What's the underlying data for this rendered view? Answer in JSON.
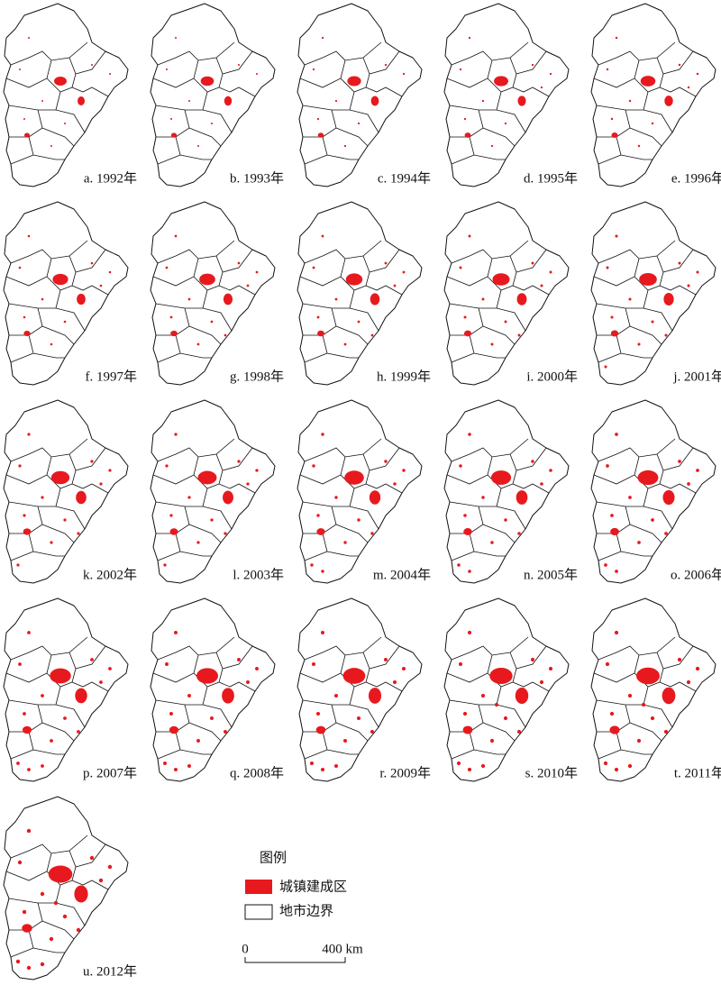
{
  "panels": [
    {
      "label": "a. 1992年"
    },
    {
      "label": "b. 1993年"
    },
    {
      "label": "c. 1994年"
    },
    {
      "label": "d. 1995年"
    },
    {
      "label": "e. 1996年"
    },
    {
      "label": "f. 1997年"
    },
    {
      "label": "g. 1998年"
    },
    {
      "label": "h. 1999年"
    },
    {
      "label": "i. 2000年"
    },
    {
      "label": "j. 2001年"
    },
    {
      "label": "k. 2002年"
    },
    {
      "label": "l. 2003年"
    },
    {
      "label": "m. 2004年"
    },
    {
      "label": "n. 2005年"
    },
    {
      "label": "o. 2006年"
    },
    {
      "label": "p. 2007年"
    },
    {
      "label": "q. 2008年"
    },
    {
      "label": "r. 2009年"
    },
    {
      "label": "s. 2010年"
    },
    {
      "label": "t. 2011年"
    },
    {
      "label": "u. 2012年"
    }
  ],
  "legend": {
    "title": "图例",
    "items": [
      {
        "label": "城镇建成区"
      },
      {
        "label": "地市边界"
      }
    ]
  },
  "scale_bar": {
    "start": "0",
    "end": "400 km"
  }
}
